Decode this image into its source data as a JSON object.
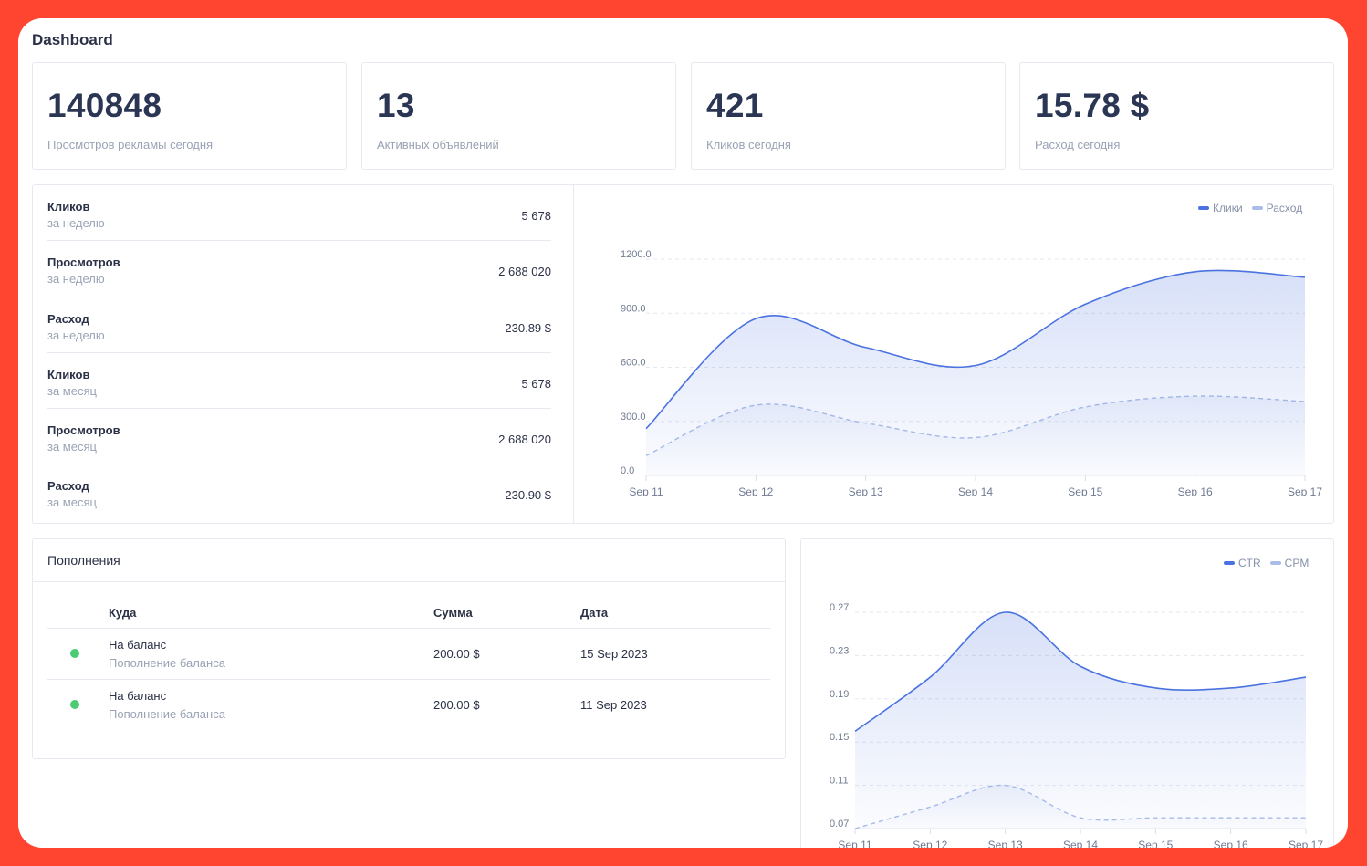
{
  "page": {
    "title": "Dashboard"
  },
  "stats": [
    {
      "value": "140848",
      "label": "Просмотров рекламы сегодня"
    },
    {
      "value": "13",
      "label": "Активных объявлений"
    },
    {
      "value": "421",
      "label": "Кликов сегодня"
    },
    {
      "value": "15.78 $",
      "label": "Расход сегодня"
    }
  ],
  "metrics": [
    {
      "title": "Кликов",
      "period": "за неделю",
      "value": "5 678"
    },
    {
      "title": "Просмотров",
      "period": "за неделю",
      "value": "2 688 020"
    },
    {
      "title": "Расход",
      "period": "за неделю",
      "value": "230.89 $"
    },
    {
      "title": "Кликов",
      "period": "за месяц",
      "value": "5 678"
    },
    {
      "title": "Просмотров",
      "period": "за месяц",
      "value": "2 688 020"
    },
    {
      "title": "Расход",
      "period": "за месяц",
      "value": "230.90 $"
    }
  ],
  "topups": {
    "title": "Пополнения",
    "columns": {
      "where": "Куда",
      "amount": "Сумма",
      "date": "Дата"
    },
    "rows": [
      {
        "title": "На баланс",
        "subtitle": "Пополнение баланса",
        "amount": "200.00 $",
        "date": "15 Sep 2023",
        "status_color": "#4ccb73"
      },
      {
        "title": "На баланс",
        "subtitle": "Пополнение баланса",
        "amount": "200.00 $",
        "date": "11 Sep 2023",
        "status_color": "#4ccb73"
      }
    ]
  },
  "colors": {
    "primary": "#4a72e0",
    "secondary": "#a9bde8",
    "accent_frame": "#ff4530",
    "success": "#4ccb73"
  },
  "chart_data": [
    {
      "type": "area",
      "categories": [
        "Sep 11",
        "Sep 12",
        "Sep 13",
        "Sep 14",
        "Sep 15",
        "Sep 16",
        "Sep 17"
      ],
      "y_ticks": [
        "0.0",
        "300.0",
        "600.0",
        "900.0",
        "1200.0"
      ],
      "ylim": [
        0,
        1200
      ],
      "legend_position": "top-right",
      "series": [
        {
          "name": "Клики",
          "values": [
            260,
            870,
            710,
            610,
            950,
            1130,
            1100
          ],
          "style": "solid-area"
        },
        {
          "name": "Расход",
          "values": [
            110,
            390,
            290,
            210,
            380,
            440,
            410
          ],
          "style": "dashed-area"
        }
      ]
    },
    {
      "type": "area",
      "categories": [
        "Sep 11",
        "Sep 12",
        "Sep 13",
        "Sep 14",
        "Sep 15",
        "Sep 16",
        "Sep 17"
      ],
      "y_ticks": [
        "0.07",
        "0.11",
        "0.15",
        "0.19",
        "0.23",
        "0.27"
      ],
      "ylim": [
        0.07,
        0.27
      ],
      "legend_position": "top-right",
      "series": [
        {
          "name": "CTR",
          "values": [
            0.16,
            0.21,
            0.27,
            0.22,
            0.2,
            0.2,
            0.21
          ],
          "style": "solid-area"
        },
        {
          "name": "CPM",
          "values": [
            0.07,
            0.09,
            0.11,
            0.08,
            0.08,
            0.08,
            0.08
          ],
          "style": "dashed-area"
        }
      ]
    }
  ]
}
